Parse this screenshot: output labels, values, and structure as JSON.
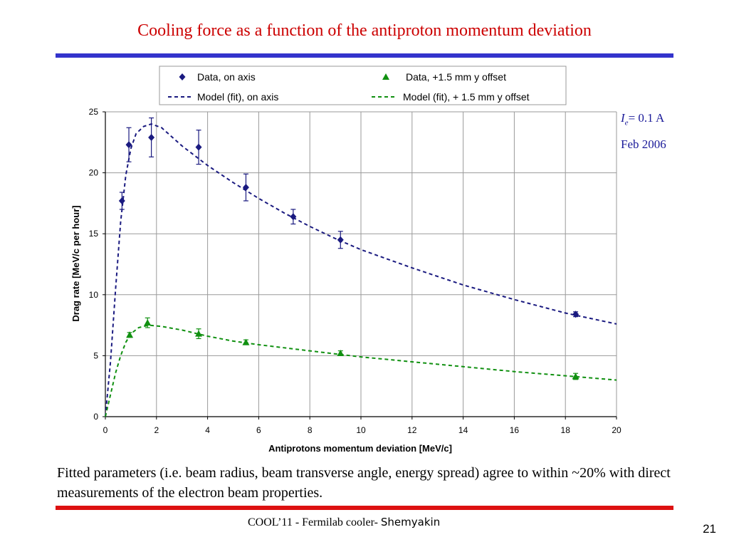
{
  "slide": {
    "title": "Cooling force as a function of the antiproton momentum deviation",
    "annotation_current": "= 0.1 A",
    "annotation_current_symbol": "I",
    "annotation_current_sub": "e",
    "annotation_date": "Feb 2006",
    "body": "Fitted parameters (i.e. beam radius, beam transverse angle, energy spread) agree to within ~20% with direct measurements of the electron beam properties.",
    "footer_prefix": "COOL’11 - Fermilab cooler-",
    "footer_name": "Shemyakin",
    "page_number": "21"
  },
  "colors": {
    "title": "#cc0000",
    "on_axis": "#1a1a80",
    "offset": "#109010",
    "rule_top": "#3333cc",
    "rule_bottom": "#dd1111"
  },
  "chart_data": {
    "type": "scatter",
    "title": "",
    "xlabel": "Antiprotons momentum deviation [MeV/c]",
    "ylabel": "Drag rate [MeV/c per hour]",
    "xlim": [
      0,
      20
    ],
    "ylim": [
      0,
      25
    ],
    "xticks": [
      0,
      2,
      4,
      6,
      8,
      10,
      12,
      14,
      16,
      18,
      20
    ],
    "yticks": [
      0,
      5,
      10,
      15,
      20,
      25
    ],
    "grid": true,
    "legend_position": "top",
    "legend": [
      {
        "label": "Data, on axis",
        "marker": "diamond",
        "color": "#1a1a80"
      },
      {
        "label": "Data, +1.5 mm y offset",
        "marker": "triangle",
        "color": "#109010"
      },
      {
        "label": "Model (fit), on axis",
        "marker": "dashed-line",
        "color": "#1a1a80"
      },
      {
        "label": "Model (fit), + 1.5 mm y offset",
        "marker": "dashed-line",
        "color": "#109010"
      }
    ],
    "series": [
      {
        "name": "Data, on axis",
        "kind": "points",
        "marker": "diamond",
        "color": "#1a1a80",
        "points": [
          {
            "x": 0.65,
            "y": 17.7,
            "err": 0.7
          },
          {
            "x": 0.92,
            "y": 22.3,
            "err": 1.4
          },
          {
            "x": 1.8,
            "y": 22.9,
            "err": 1.6
          },
          {
            "x": 3.65,
            "y": 22.1,
            "err": 1.4
          },
          {
            "x": 5.5,
            "y": 18.8,
            "err": 1.1
          },
          {
            "x": 7.35,
            "y": 16.4,
            "err": 0.6
          },
          {
            "x": 9.2,
            "y": 14.5,
            "err": 0.7
          },
          {
            "x": 18.4,
            "y": 8.4,
            "err": 0.2
          }
        ]
      },
      {
        "name": "Data, +1.5 mm y offset",
        "kind": "points",
        "marker": "triangle",
        "color": "#109010",
        "points": [
          {
            "x": 0.95,
            "y": 6.7,
            "err": 0.2
          },
          {
            "x": 1.65,
            "y": 7.7,
            "err": 0.4
          },
          {
            "x": 3.65,
            "y": 6.8,
            "err": 0.4
          },
          {
            "x": 5.5,
            "y": 6.1,
            "err": 0.2
          },
          {
            "x": 9.2,
            "y": 5.2,
            "err": 0.2
          },
          {
            "x": 18.4,
            "y": 3.3,
            "err": 0.25
          }
        ]
      },
      {
        "name": "Model (fit), on axis",
        "kind": "dashed-line",
        "color": "#1a1a80",
        "points": [
          {
            "x": 0.0,
            "y": 0.0
          },
          {
            "x": 0.2,
            "y": 4.5
          },
          {
            "x": 0.4,
            "y": 10.5
          },
          {
            "x": 0.6,
            "y": 16.0
          },
          {
            "x": 0.8,
            "y": 19.8
          },
          {
            "x": 1.0,
            "y": 22.0
          },
          {
            "x": 1.2,
            "y": 23.2
          },
          {
            "x": 1.5,
            "y": 23.8
          },
          {
            "x": 1.8,
            "y": 24.0
          },
          {
            "x": 2.2,
            "y": 23.7
          },
          {
            "x": 3.0,
            "y": 22.2
          },
          {
            "x": 4.0,
            "y": 20.6
          },
          {
            "x": 5.0,
            "y": 19.2
          },
          {
            "x": 6.0,
            "y": 17.9
          },
          {
            "x": 7.0,
            "y": 16.7
          },
          {
            "x": 8.0,
            "y": 15.6
          },
          {
            "x": 9.0,
            "y": 14.6
          },
          {
            "x": 10.0,
            "y": 13.7
          },
          {
            "x": 12.0,
            "y": 12.2
          },
          {
            "x": 14.0,
            "y": 10.8
          },
          {
            "x": 16.0,
            "y": 9.6
          },
          {
            "x": 18.0,
            "y": 8.5
          },
          {
            "x": 20.0,
            "y": 7.6
          }
        ]
      },
      {
        "name": "Model (fit), + 1.5 mm y offset",
        "kind": "dashed-line",
        "color": "#109010",
        "points": [
          {
            "x": 0.0,
            "y": 0.0
          },
          {
            "x": 0.2,
            "y": 1.8
          },
          {
            "x": 0.4,
            "y": 3.6
          },
          {
            "x": 0.6,
            "y": 5.0
          },
          {
            "x": 0.8,
            "y": 6.1
          },
          {
            "x": 1.0,
            "y": 6.8
          },
          {
            "x": 1.3,
            "y": 7.3
          },
          {
            "x": 1.7,
            "y": 7.5
          },
          {
            "x": 2.2,
            "y": 7.4
          },
          {
            "x": 3.0,
            "y": 7.1
          },
          {
            "x": 4.0,
            "y": 6.6
          },
          {
            "x": 5.0,
            "y": 6.2
          },
          {
            "x": 6.0,
            "y": 5.9
          },
          {
            "x": 8.0,
            "y": 5.4
          },
          {
            "x": 10.0,
            "y": 4.9
          },
          {
            "x": 12.0,
            "y": 4.5
          },
          {
            "x": 14.0,
            "y": 4.1
          },
          {
            "x": 16.0,
            "y": 3.7
          },
          {
            "x": 18.0,
            "y": 3.35
          },
          {
            "x": 20.0,
            "y": 3.0
          }
        ]
      }
    ]
  }
}
